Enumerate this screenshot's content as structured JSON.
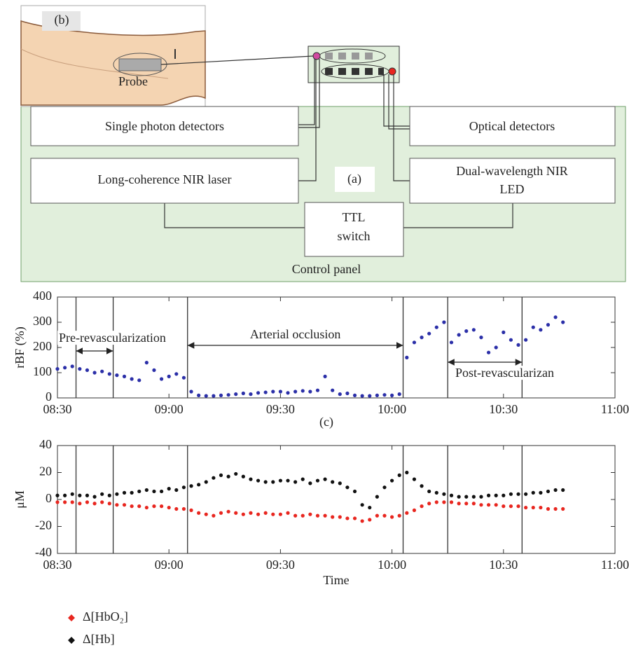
{
  "diagram": {
    "panel_b": "(b)",
    "probe": "Probe",
    "panel_a": "(a)",
    "single_photon": "Single photon detectors",
    "optical": "Optical detectors",
    "laser": "Long-coherence NIR laser",
    "led": [
      "Dual-wavelength NIR",
      "LED"
    ],
    "ttl": [
      "TTL",
      "switch"
    ],
    "control_panel": "Control panel"
  },
  "chart_data": [
    {
      "type": "scatter",
      "ylabel": "rBF (%)",
      "panel_label": "(c)",
      "xlim": [
        "08:30",
        "11:00"
      ],
      "xticks": [
        "08:30",
        "09:00",
        "09:30",
        "10:00",
        "10:30",
        "11:00"
      ],
      "ylim": [
        0,
        400
      ],
      "yticks": [
        0,
        100,
        200,
        300,
        400
      ],
      "vlines": [
        "08:35",
        "08:45",
        "09:05",
        "10:03",
        "10:15",
        "10:35"
      ],
      "annotations": [
        {
          "text": "Pre-revascularization",
          "from": "08:35",
          "to": "08:45"
        },
        {
          "text": "Arterial occlusion",
          "from": "09:05",
          "to": "10:03"
        },
        {
          "text": "Post-revascularizan",
          "from": "10:15",
          "to": "10:35"
        }
      ],
      "x": [
        "08:30",
        "08:32",
        "08:34",
        "08:36",
        "08:38",
        "08:40",
        "08:42",
        "08:44",
        "08:46",
        "08:48",
        "08:50",
        "08:52",
        "08:54",
        "08:56",
        "08:58",
        "09:00",
        "09:02",
        "09:04",
        "09:06",
        "09:08",
        "09:10",
        "09:12",
        "09:14",
        "09:16",
        "09:18",
        "09:20",
        "09:22",
        "09:24",
        "09:26",
        "09:28",
        "09:30",
        "09:32",
        "09:34",
        "09:36",
        "09:38",
        "09:40",
        "09:42",
        "09:44",
        "09:46",
        "09:48",
        "09:50",
        "09:52",
        "09:54",
        "09:56",
        "09:58",
        "10:00",
        "10:02",
        "10:04",
        "10:06",
        "10:08",
        "10:10",
        "10:12",
        "10:14",
        "10:16",
        "10:18",
        "10:20",
        "10:22",
        "10:24",
        "10:26",
        "10:28",
        "10:30",
        "10:32",
        "10:34",
        "10:36",
        "10:38",
        "10:40",
        "10:42",
        "10:44",
        "10:46"
      ],
      "series": [
        {
          "color": "#2b2fa8",
          "values": [
            115,
            120,
            125,
            115,
            110,
            100,
            105,
            95,
            90,
            85,
            75,
            70,
            140,
            110,
            75,
            85,
            95,
            80,
            25,
            10,
            8,
            8,
            10,
            12,
            15,
            18,
            15,
            20,
            22,
            25,
            25,
            20,
            25,
            28,
            25,
            30,
            85,
            30,
            15,
            18,
            10,
            8,
            8,
            10,
            12,
            10,
            15,
            160,
            220,
            240,
            255,
            280,
            300,
            220,
            250,
            265,
            270,
            240,
            180,
            200,
            260,
            230,
            210,
            230,
            280,
            270,
            290,
            320,
            300
          ]
        }
      ]
    },
    {
      "type": "scatter",
      "ylabel": "μM",
      "xlabel": "Time",
      "legend": "below",
      "xlim": [
        "08:30",
        "11:00"
      ],
      "xticks": [
        "08:30",
        "09:00",
        "09:30",
        "10:00",
        "10:30",
        "11:00"
      ],
      "ylim": [
        -40,
        40
      ],
      "yticks": [
        -40,
        -20,
        0,
        20,
        40
      ],
      "vlines": [
        "08:35",
        "08:45",
        "09:05",
        "10:03",
        "10:15",
        "10:35"
      ],
      "x": [
        "08:30",
        "08:32",
        "08:34",
        "08:36",
        "08:38",
        "08:40",
        "08:42",
        "08:44",
        "08:46",
        "08:48",
        "08:50",
        "08:52",
        "08:54",
        "08:56",
        "08:58",
        "09:00",
        "09:02",
        "09:04",
        "09:06",
        "09:08",
        "09:10",
        "09:12",
        "09:14",
        "09:16",
        "09:18",
        "09:20",
        "09:22",
        "09:24",
        "09:26",
        "09:28",
        "09:30",
        "09:32",
        "09:34",
        "09:36",
        "09:38",
        "09:40",
        "09:42",
        "09:44",
        "09:46",
        "09:48",
        "09:50",
        "09:52",
        "09:54",
        "09:56",
        "09:58",
        "10:00",
        "10:02",
        "10:04",
        "10:06",
        "10:08",
        "10:10",
        "10:12",
        "10:14",
        "10:16",
        "10:18",
        "10:20",
        "10:22",
        "10:24",
        "10:26",
        "10:28",
        "10:30",
        "10:32",
        "10:34",
        "10:36",
        "10:38",
        "10:40",
        "10:42",
        "10:44",
        "10:46"
      ],
      "series": [
        {
          "name": "Δ[HbO₂]",
          "color": "#e8261f",
          "values": [
            -2,
            -2,
            -2,
            -3,
            -2,
            -3,
            -2,
            -3,
            -4,
            -4,
            -5,
            -5,
            -6,
            -5,
            -5,
            -6,
            -7,
            -7,
            -8,
            -10,
            -11,
            -12,
            -10,
            -9,
            -10,
            -11,
            -10,
            -11,
            -10,
            -11,
            -11,
            -10,
            -12,
            -12,
            -11,
            -12,
            -12,
            -13,
            -13,
            -14,
            -14,
            -16,
            -15,
            -12,
            -12,
            -13,
            -12,
            -10,
            -8,
            -5,
            -3,
            -2,
            -2,
            -2,
            -3,
            -3,
            -3,
            -4,
            -4,
            -4,
            -5,
            -5,
            -5,
            -6,
            -6,
            -6,
            -7,
            -7,
            -7
          ]
        },
        {
          "name": "Δ[Hb]",
          "color": "#111111",
          "values": [
            3,
            3,
            4,
            3,
            3,
            2,
            4,
            3,
            4,
            5,
            5,
            6,
            7,
            6,
            6,
            8,
            7,
            9,
            10,
            11,
            13,
            16,
            18,
            17,
            19,
            17,
            15,
            14,
            13,
            13,
            14,
            14,
            13,
            15,
            12,
            14,
            15,
            13,
            12,
            9,
            6,
            -4,
            -6,
            2,
            9,
            14,
            18,
            20,
            15,
            10,
            6,
            5,
            4,
            3,
            2,
            2,
            2,
            2,
            3,
            3,
            3,
            4,
            4,
            4,
            5,
            5,
            6,
            7,
            7
          ]
        }
      ]
    }
  ]
}
